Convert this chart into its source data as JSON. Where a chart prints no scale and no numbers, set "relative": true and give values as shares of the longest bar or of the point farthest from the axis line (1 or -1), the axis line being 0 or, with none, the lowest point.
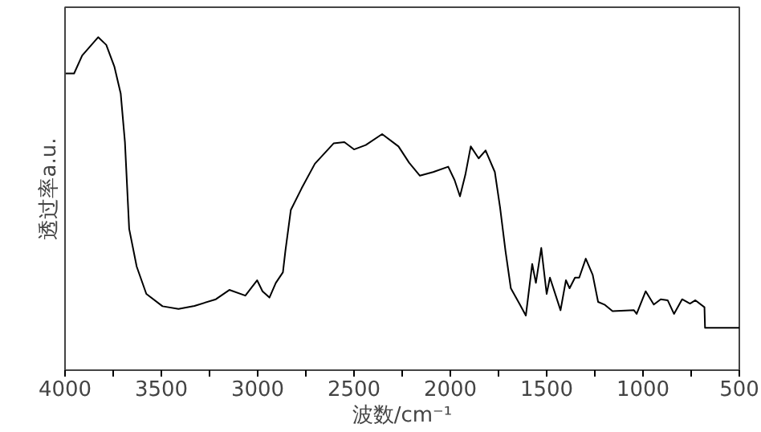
{
  "chart_data": {
    "type": "line",
    "xlabel": "波数/cm⁻¹",
    "ylabel": "透过率a.u.",
    "relative": true,
    "color": "#000000",
    "x": [
      4000,
      3953,
      3911,
      3828,
      3786,
      3744,
      3711,
      3689,
      3667,
      3628,
      3578,
      3494,
      3411,
      3328,
      3217,
      3147,
      3064,
      3003,
      2975,
      2939,
      2906,
      2869,
      2856,
      2828,
      2772,
      2703,
      2606,
      2550,
      2500,
      2439,
      2354,
      2269,
      2214,
      2158,
      2089,
      2011,
      1978,
      1950,
      1922,
      1894,
      1853,
      1817,
      1769,
      1742,
      1714,
      1686,
      1639,
      1608,
      1575,
      1556,
      1528,
      1500,
      1483,
      1428,
      1400,
      1381,
      1353,
      1331,
      1297,
      1261,
      1233,
      1200,
      1158,
      1047,
      1033,
      986,
      944,
      908,
      872,
      839,
      797,
      756,
      728,
      681,
      678,
      500
    ],
    "values": [
      0.891,
      0.891,
      0.945,
      1.0,
      0.977,
      0.912,
      0.831,
      0.685,
      0.424,
      0.311,
      0.229,
      0.192,
      0.184,
      0.193,
      0.213,
      0.241,
      0.224,
      0.27,
      0.237,
      0.218,
      0.262,
      0.294,
      0.359,
      0.481,
      0.546,
      0.62,
      0.681,
      0.685,
      0.663,
      0.676,
      0.709,
      0.672,
      0.623,
      0.584,
      0.595,
      0.611,
      0.571,
      0.522,
      0.587,
      0.672,
      0.636,
      0.66,
      0.595,
      0.489,
      0.359,
      0.246,
      0.197,
      0.164,
      0.319,
      0.262,
      0.367,
      0.229,
      0.278,
      0.18,
      0.27,
      0.246,
      0.278,
      0.278,
      0.335,
      0.286,
      0.205,
      0.197,
      0.177,
      0.18,
      0.169,
      0.237,
      0.197,
      0.213,
      0.21,
      0.169,
      0.213,
      0.2,
      0.21,
      0.189,
      0.127,
      0.127
    ],
    "xlim": [
      4000,
      500
    ],
    "xticks": [
      4000,
      {
        "value": 3750,
        "label": null
      },
      3500,
      {
        "value": 3250,
        "label": null
      },
      3000,
      {
        "value": 2750,
        "label": null
      },
      2500,
      {
        "value": 2250,
        "label": null
      },
      2000,
      {
        "value": 1750,
        "label": null
      },
      1500,
      {
        "value": 1250,
        "label": null
      },
      1000,
      {
        "value": 750,
        "label": null
      },
      500
    ]
  }
}
